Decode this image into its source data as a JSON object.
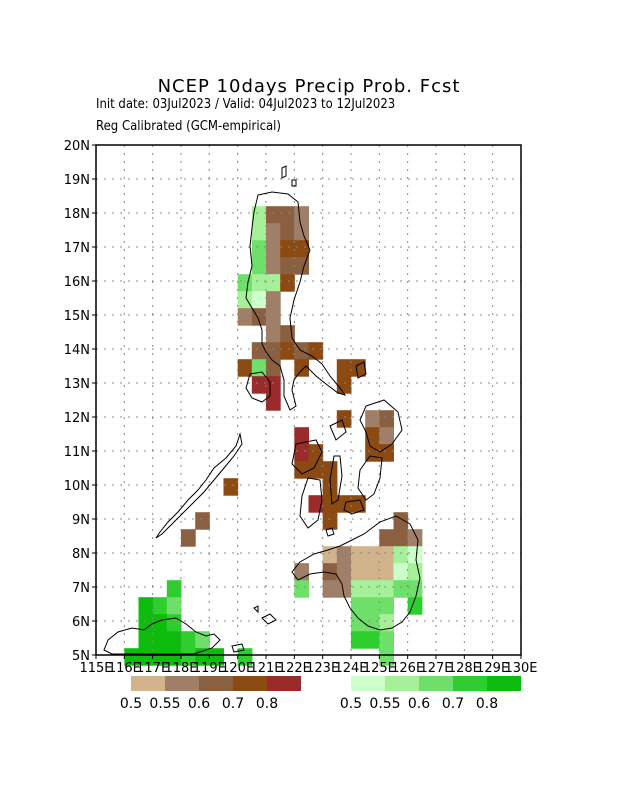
{
  "header": {
    "title": "NCEP 10days Precip Prob. Fcst",
    "subtitle": "Init date: 03Jul2023 / Valid: 04Jul2023 to 12Jul2023",
    "calibration": "Reg Calibrated (GCM-empirical)"
  },
  "map": {
    "lon_range": [
      115,
      130
    ],
    "lat_range": [
      5,
      20
    ],
    "lat_labels": [
      "5N",
      "6N",
      "7N",
      "8N",
      "9N",
      "10N",
      "11N",
      "12N",
      "13N",
      "14N",
      "15N",
      "16N",
      "17N",
      "18N",
      "19N",
      "20N"
    ],
    "lon_labels": [
      "115E",
      "116E",
      "117E",
      "118E",
      "119E",
      "120E",
      "121E",
      "122E",
      "123E",
      "124E",
      "125E",
      "126E",
      "127E",
      "128E",
      "129E",
      "130E"
    ],
    "grid": true
  },
  "legend_dry": {
    "colors": [
      "#d2b48c",
      "#a07f68",
      "#8a6040",
      "#8b4a12",
      "#9b2a2a"
    ],
    "labels": [
      "0.5",
      "0.55",
      "0.6",
      "0.7",
      "0.8"
    ]
  },
  "legend_wet": {
    "colors": [
      "#ccffcc",
      "#a6f09a",
      "#6ee06a",
      "#2fce2f",
      "#0ebc0e"
    ],
    "labels": [
      "0.5",
      "0.55",
      "0.6",
      "0.7",
      "0.8"
    ]
  }
}
